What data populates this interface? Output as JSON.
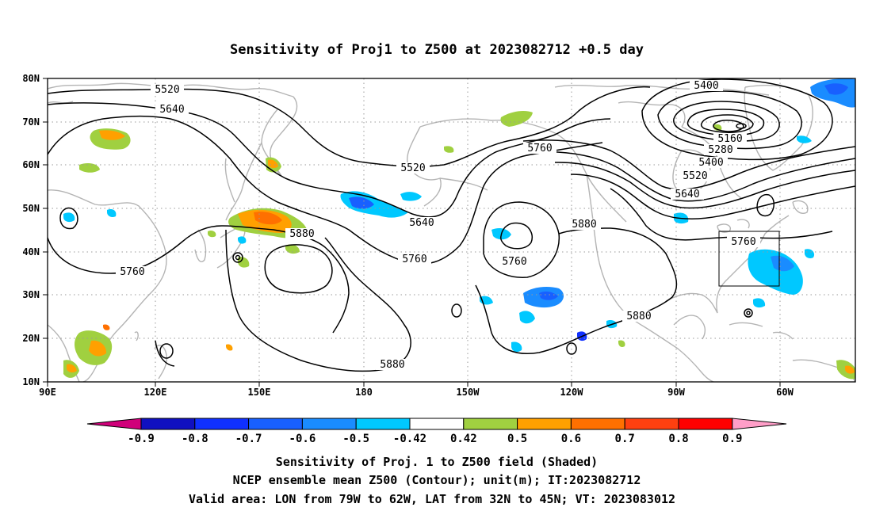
{
  "title": "Sensitivity of Proj1 to Z500 at 2023082712 +0.5 day",
  "map": {
    "lon_range": [
      90,
      300
    ],
    "lat_range": [
      10,
      80
    ],
    "x_ticks": [
      {
        "lon": 90,
        "label": "90E"
      },
      {
        "lon": 120,
        "label": "120E"
      },
      {
        "lon": 150,
        "label": "150E"
      },
      {
        "lon": 180,
        "label": "180"
      },
      {
        "lon": 210,
        "label": "150W"
      },
      {
        "lon": 240,
        "label": "120W"
      },
      {
        "lon": 270,
        "label": "90W"
      },
      {
        "lon": 300,
        "label": "60W"
      }
    ],
    "y_ticks": [
      {
        "lat": 10,
        "label": "10N"
      },
      {
        "lat": 20,
        "label": "20N"
      },
      {
        "lat": 30,
        "label": "30N"
      },
      {
        "lat": 40,
        "label": "40N"
      },
      {
        "lat": 50,
        "label": "50N"
      },
      {
        "lat": 60,
        "label": "60N"
      },
      {
        "lat": 70,
        "label": "70N"
      },
      {
        "lat": 80,
        "label": "80N"
      }
    ],
    "grid": "dotted",
    "valid_box": {
      "lon": [
        281,
        298
      ],
      "lat": [
        32,
        45
      ]
    },
    "contour_labels": [
      "5520",
      "5640",
      "5400",
      "5160",
      "5280",
      "5400",
      "5520",
      "5640",
      "5760",
      "5520",
      "5640",
      "5760",
      "5880",
      "5760",
      "5760",
      "5880",
      "5760",
      "5760",
      "5880",
      "5880"
    ]
  },
  "colorbar": {
    "labels": [
      "-0.9",
      "-0.8",
      "-0.7",
      "-0.6",
      "-0.5",
      "-0.42",
      "0.42",
      "0.5",
      "0.6",
      "0.7",
      "0.8",
      "0.9"
    ],
    "colors": [
      "#d0007a",
      "#1010c0",
      "#1030ff",
      "#1860ff",
      "#1a8cff",
      "#00c8ff",
      "#ffffff",
      "#a0d040",
      "#ffa000",
      "#ff7000",
      "#ff4010",
      "#ff0000",
      "#ff9ec8"
    ]
  },
  "caption": {
    "line1": "Sensitivity of Proj. 1 to Z500 field (Shaded)",
    "line2": "NCEP ensemble mean Z500 (Contour); unit(m); IT:2023082712",
    "line3": "Valid area: LON from 79W to 62W, LAT from 32N to 45N; VT: 2023083012"
  }
}
